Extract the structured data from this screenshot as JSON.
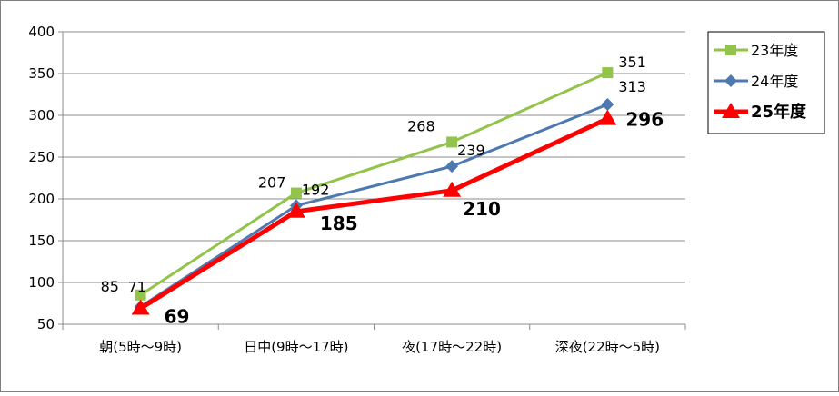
{
  "chart_data": {
    "type": "line",
    "categories": [
      "朝(5時〜9時)",
      "日中(9時〜17時)",
      "夜(17時〜22時)",
      "深夜(22時〜5時)"
    ],
    "series": [
      {
        "name": "23年度",
        "values": [
          85,
          207,
          268,
          351
        ],
        "color": "#92c44a",
        "marker": "square",
        "bold": false
      },
      {
        "name": "24年度",
        "values": [
          71,
          192,
          239,
          313
        ],
        "color": "#4e79b0",
        "marker": "diamond",
        "bold": false
      },
      {
        "name": "25年度",
        "values": [
          69,
          185,
          210,
          296
        ],
        "color": "#ff0000",
        "marker": "triangle",
        "bold": true
      }
    ],
    "ylim": [
      50,
      400
    ],
    "yticks": [
      50,
      100,
      150,
      200,
      250,
      300,
      350,
      400
    ],
    "grid": true,
    "legend_position": "right",
    "data_label_color": "#000000"
  }
}
